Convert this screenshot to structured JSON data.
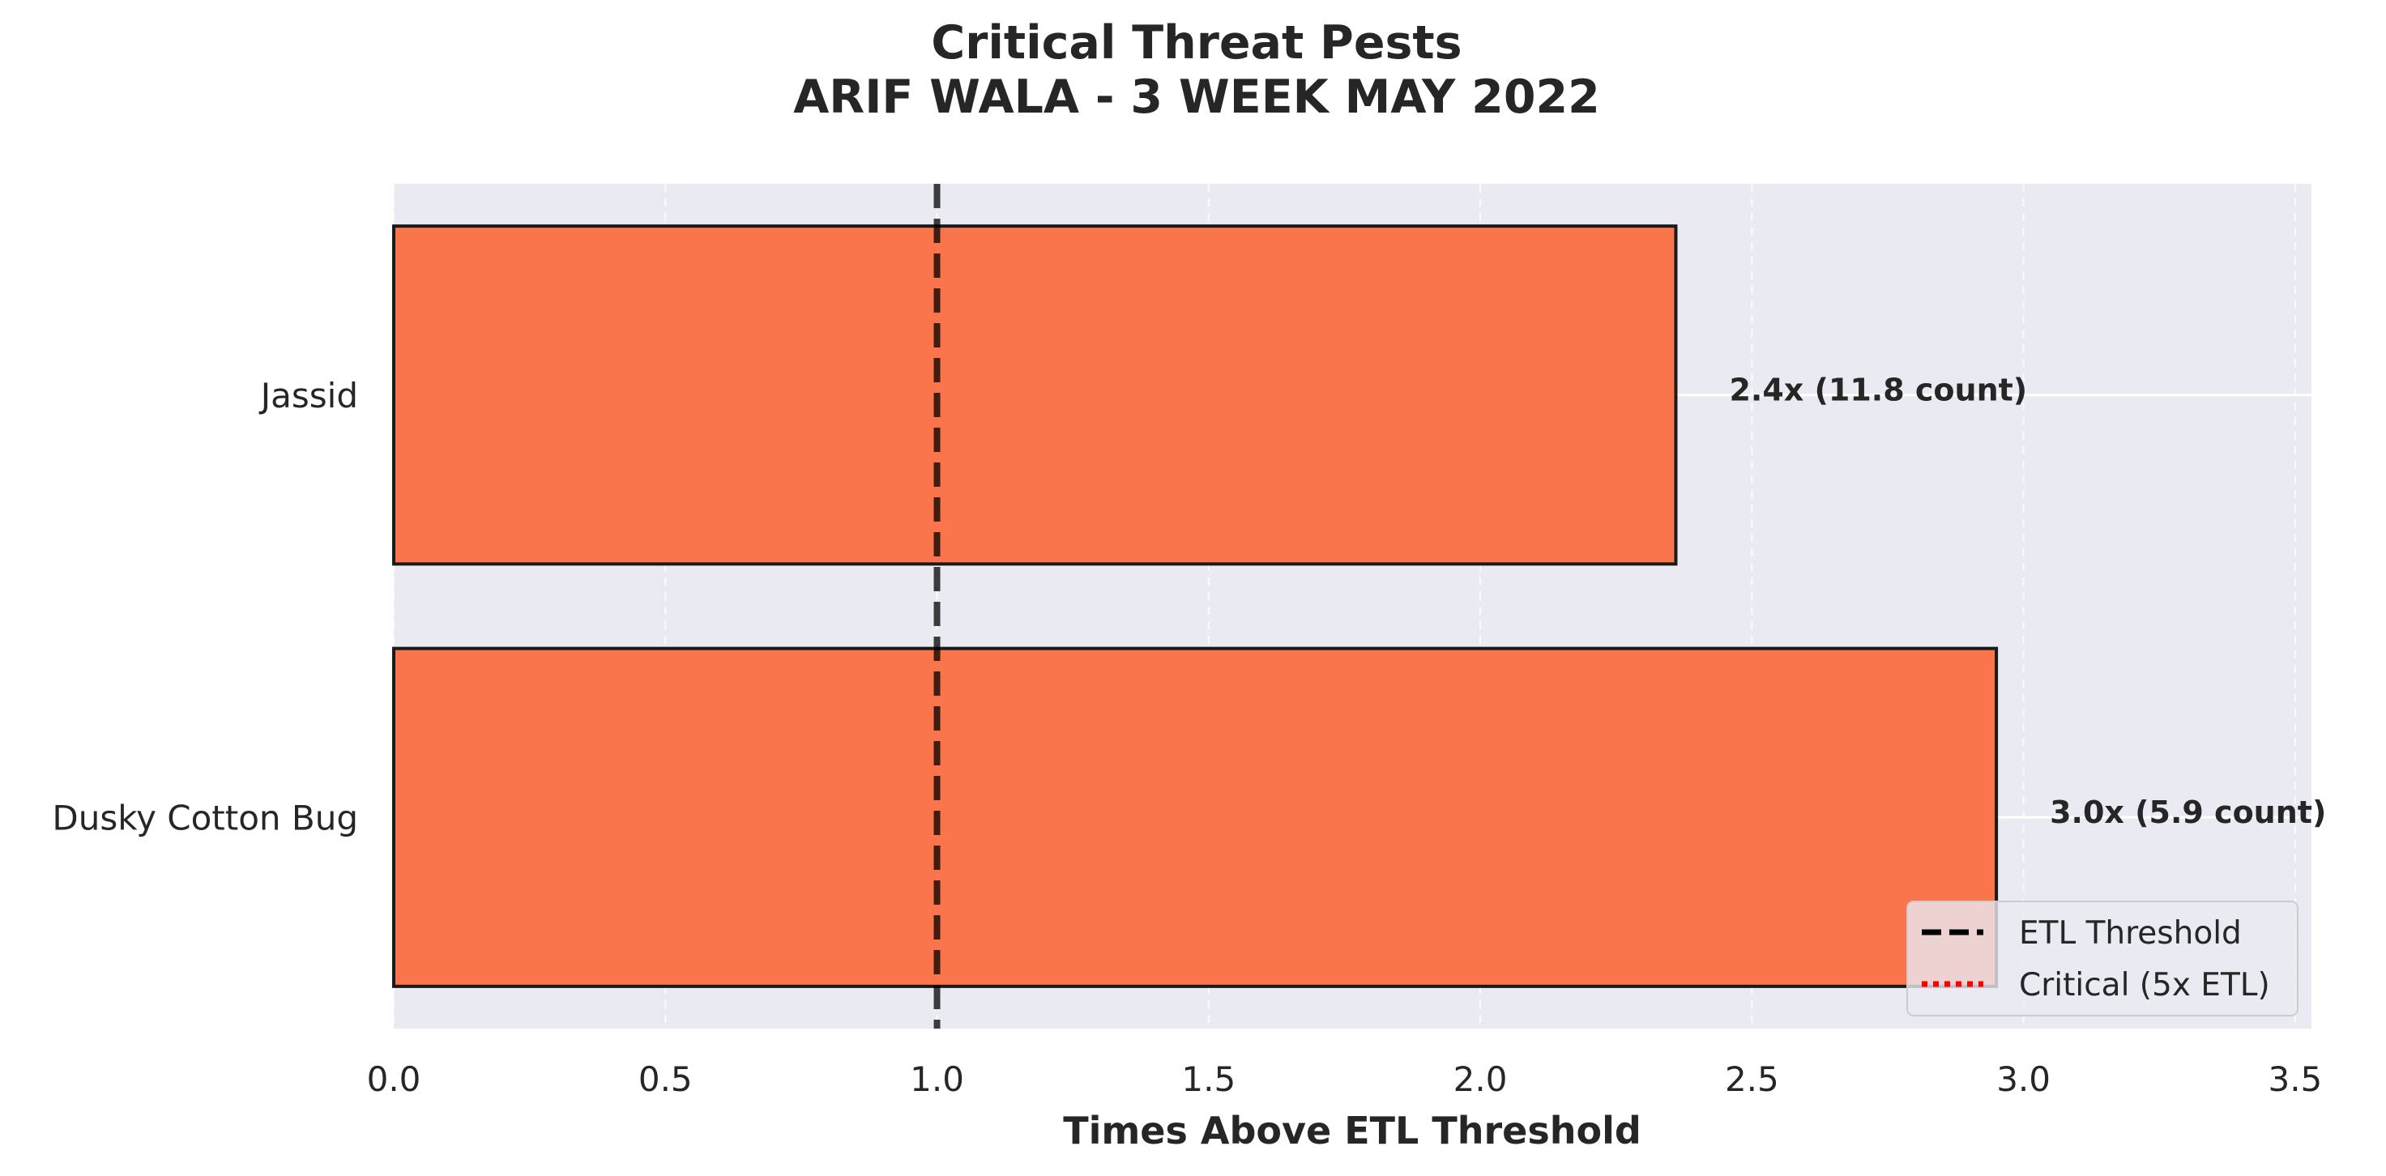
{
  "chart_data": {
    "type": "bar",
    "orientation": "horizontal",
    "title": "Critical Threat Pests\nARIF WALA - 3 WEEK MAY 2022",
    "xlabel": "Times Above ETL Threshold",
    "ylabel": "",
    "xlim": [
      0,
      3.53
    ],
    "xticks": [
      "0.0",
      "0.5",
      "1.0",
      "1.5",
      "2.0",
      "2.5",
      "3.0",
      "3.5"
    ],
    "categories": [
      "Jassid",
      "Dusky Cotton Bug"
    ],
    "values": [
      2.36,
      2.95
    ],
    "data_labels": [
      "2.4x  (11.8 count)",
      "3.0x  (5.9 count)"
    ],
    "bar_color": "#fa7046",
    "bar_edge_color": "#1a1a1a",
    "background_color": "#eaeaf2",
    "grid": true,
    "reference_lines": [
      {
        "name": "ETL Threshold",
        "x": 1.0,
        "style": "dashed",
        "color": "#000000"
      },
      {
        "name": "Critical (5x ETL)",
        "x": 5.0,
        "style": "dotted",
        "color": "#ff0000"
      }
    ],
    "legend": {
      "placement": "lower-right",
      "entries": [
        "ETL Threshold",
        "Critical (5x ETL)"
      ]
    }
  }
}
